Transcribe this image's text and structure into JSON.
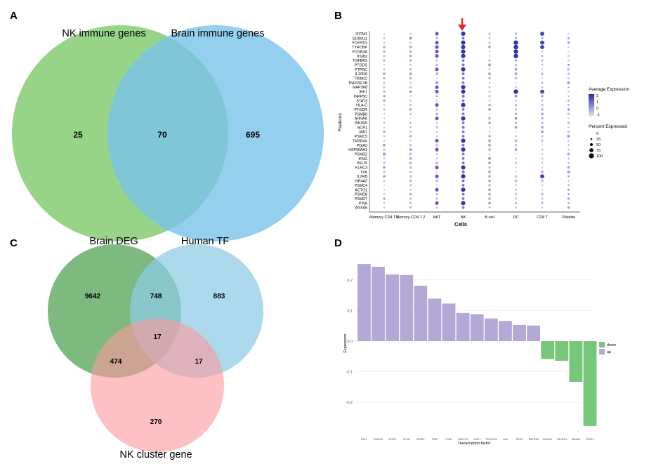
{
  "panels": {
    "a": "A",
    "b": "B",
    "c": "C",
    "d": "D"
  },
  "chart_data": [
    {
      "type": "venn",
      "panel": "A",
      "sets": [
        {
          "name": "NK immune genes",
          "color": "#7dc96a"
        },
        {
          "name": "Brain immune genes",
          "color": "#79c3ea"
        }
      ],
      "regions": {
        "only_nk": 25,
        "overlap": 70,
        "only_brain": 695
      }
    },
    {
      "type": "dotplot",
      "panel": "B",
      "xlabel": "Cells",
      "ylabel": "Features",
      "arrow_label": "NK",
      "cells": [
        "Memory CD4 T 1",
        "Memory CD4 T 2",
        "NKT",
        "NK",
        "B cell",
        "DC",
        "CD8 T",
        "Platelet"
      ],
      "features": [
        "IFITM1",
        "S100A11",
        "FCER1G",
        "TYROBP",
        "FCGR3A",
        "ITGB2",
        "TGFBR3",
        "PTGDS",
        "PTPRC",
        "IL10RA",
        "TRIM22",
        "TNFRSF1B",
        "MAP3K8",
        "IRF1",
        "INPP5D",
        "STAT3",
        "HLA-C",
        "PTGDR",
        "PSMB8",
        "AHNAK",
        "PIK3R5",
        "NCR1",
        "JAK1",
        "PSMC5",
        "TMSB4X",
        "PDIA3",
        "HSP90AA1",
        "PSMD2",
        "IFNG",
        "ISG15",
        "KLRC3",
        "TXK",
        "IL2RB",
        "NR4A2",
        "PSMC4",
        "ACTG1",
        "PSMD8",
        "PSMD7",
        "PPIA",
        "ANXA6"
      ],
      "legend_expression": {
        "title": "Average Expression",
        "ticks": [
          "2",
          "1",
          "0",
          "-1"
        ],
        "low_color": "#d9d9ee",
        "high_color": "#2a2aa8"
      },
      "legend_percent": {
        "title": "Percent Expressed",
        "ticks": [
          "0",
          "25",
          "50",
          "75",
          "100"
        ]
      },
      "pattern": {
        "high_in_nk": [
          "IFITM1",
          "FCER1G",
          "TYROBP",
          "FCGR3A",
          "ITGB2",
          "PTPRC",
          "MAP3K8",
          "IRF1",
          "HLA-C",
          "AHNAK",
          "TMSB4X",
          "HSP90AA1",
          "KLRC3",
          "IL2RB",
          "ACTG1",
          "PPIA"
        ],
        "high_in_dc": [
          "FCER1G",
          "TYROBP",
          "FCGR3A",
          "ITGB2",
          "IRF1"
        ],
        "high_in_cd8": [
          "IFITM1",
          "FCER1G",
          "TYROBP",
          "IRF1",
          "IL2RB"
        ]
      }
    },
    {
      "type": "venn",
      "panel": "C",
      "sets": [
        {
          "name": "Brain DEG",
          "color": "#62a963"
        },
        {
          "name": "Human TF",
          "color": "#8ecbe6"
        },
        {
          "name": "NK cluster gene",
          "color": "#fb9a9e"
        }
      ],
      "regions": {
        "only_deg": 9642,
        "only_tf": 883,
        "only_nk": 270,
        "deg_tf": 748,
        "deg_nk": 474,
        "tf_nk": 17,
        "all": 17
      }
    },
    {
      "type": "bar",
      "panel": "D",
      "xlabel": "Transcription factor",
      "ylabel": "Expression",
      "ylim": [
        -0.28,
        0.28
      ],
      "yticks": [
        "0.2",
        "0.1",
        "0.0",
        "-0.1",
        "-0.2"
      ],
      "categories": [
        "IRF1",
        "RUNX3",
        "STAT3",
        "PLEK",
        "ZBTB1",
        "PRB",
        "LTBP",
        "NFATC3",
        "IKZF4",
        "TSC22D3",
        "HIN",
        "ZEB1",
        "ZBTB38",
        "NCOA1",
        "TNCBP1",
        "NR4A2",
        "STAT4"
      ],
      "values": [
        0.252,
        0.243,
        0.218,
        0.216,
        0.181,
        0.139,
        0.123,
        0.092,
        0.088,
        0.074,
        0.066,
        0.053,
        0.051,
        -0.058,
        -0.064,
        -0.133,
        -0.277
      ],
      "legend": [
        {
          "name": "down",
          "color": "#77c77a"
        },
        {
          "name": "up",
          "color": "#b3a8d6"
        }
      ]
    }
  ]
}
